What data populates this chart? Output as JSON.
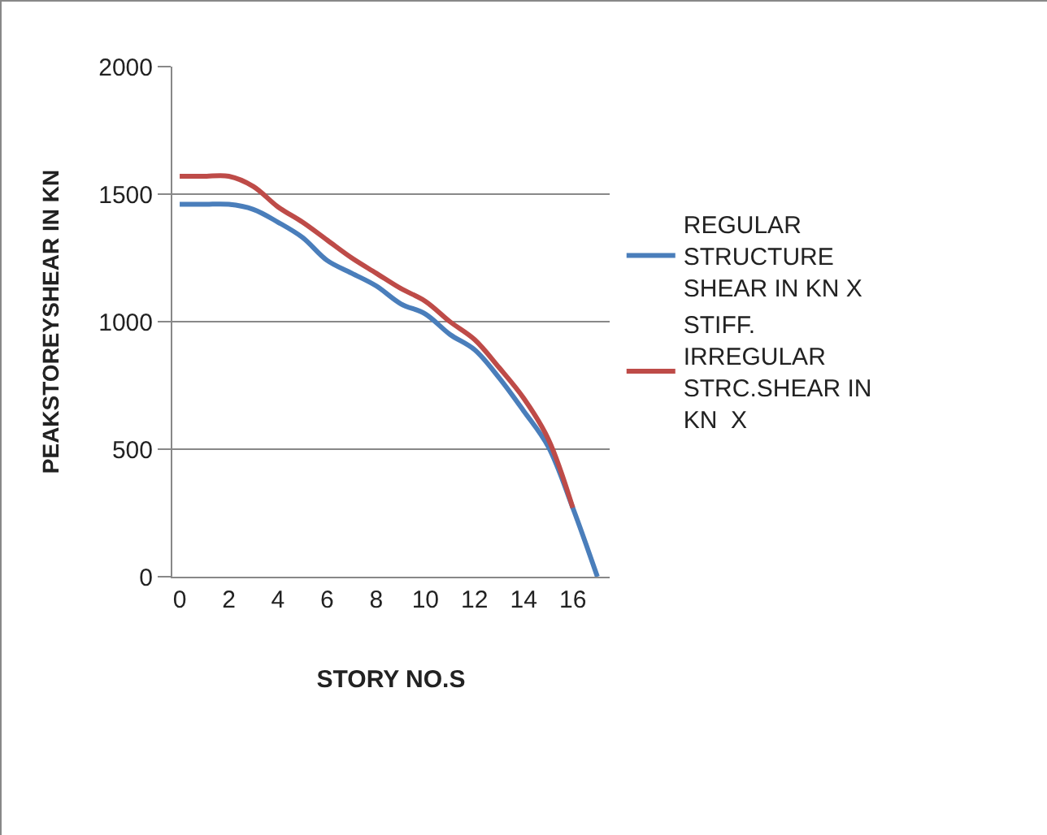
{
  "chart_data": {
    "type": "line",
    "xlabel": "STORY NO.S",
    "ylabel": "PEAKSTOREYSHEAR IN KN",
    "x": [
      0,
      1,
      2,
      3,
      4,
      5,
      6,
      7,
      8,
      9,
      10,
      11,
      12,
      13,
      14,
      15,
      16,
      17
    ],
    "series": [
      {
        "name": "REGULAR STRUCTURE SHEAR IN KN X",
        "color": "#4a7ebb",
        "values": [
          1460,
          1460,
          1460,
          1440,
          1390,
          1330,
          1240,
          1190,
          1140,
          1070,
          1030,
          950,
          890,
          780,
          650,
          510,
          270,
          0
        ]
      },
      {
        "name": "STIFF. IRREGULAR STRC.SHEAR IN KN  X",
        "color": "#be4b48",
        "values": [
          1570,
          1570,
          1570,
          1530,
          1450,
          1390,
          1320,
          1250,
          1190,
          1130,
          1080,
          1000,
          930,
          820,
          700,
          540,
          270,
          null
        ]
      }
    ],
    "xlim": [
      -0.3,
      17.5
    ],
    "xticks": [
      0,
      2,
      4,
      6,
      8,
      10,
      12,
      14,
      16
    ],
    "ylim": [
      0,
      2000
    ],
    "yticks": [
      0,
      500,
      1000,
      1500,
      2000
    ],
    "grid": "y",
    "legend": "right",
    "marker": "none",
    "line_style": "solid"
  }
}
